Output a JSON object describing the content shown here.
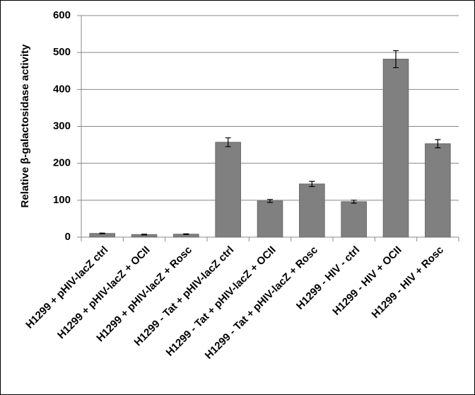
{
  "chart_data": {
    "type": "bar",
    "y_label": "Relative β-galactosidase activity",
    "categories": [
      "H1299 + pHIV-lacZ ctrl",
      "H1299 + pHIV-lacZ + OCII",
      "H1299 + pHIV-lacZ + Rosc",
      "H1299 - Tat  + pHIV-lacZ ctrl",
      "H1299 - Tat + pHIV-lacZ +  OCII",
      "H1299 - Tat + pHIV-lacZ + Rosc",
      "H1299 - HIV - ctrl",
      "H1299 - HIV +  OCII",
      "H1299 - HIV +  Rosc"
    ],
    "values": [
      10,
      7,
      8,
      257,
      98,
      144,
      96,
      482,
      253
    ],
    "errors": [
      1,
      1,
      1,
      12,
      4,
      7,
      4,
      23,
      11
    ],
    "color": "#808080",
    "ylim": [
      0,
      600
    ],
    "yticks": [
      0,
      100,
      200,
      300,
      400,
      500,
      600
    ],
    "grid": true
  }
}
